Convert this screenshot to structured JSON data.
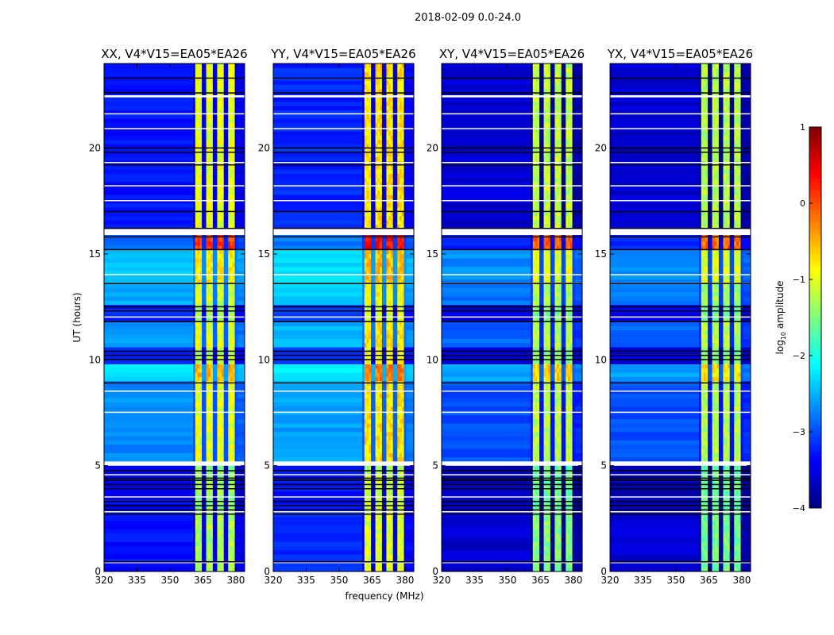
{
  "chart_data": {
    "type": "heatmap",
    "title": "2018-02-09 0.0-24.0",
    "xlabel": "frequency (MHz)",
    "ylabel": "UT (hours)",
    "xlim": [
      320,
      384
    ],
    "ylim": [
      0,
      24
    ],
    "xticks": [
      320,
      335,
      350,
      365,
      380
    ],
    "yticks": [
      0,
      5,
      10,
      15,
      20
    ],
    "colorbar": {
      "label_main": "log",
      "label_sub": "10",
      "label_rest": " amplitude",
      "range": [
        -4,
        1
      ],
      "ticks": [
        1,
        0,
        -1,
        -2,
        -3,
        -4
      ],
      "colormap": "jet"
    },
    "panels": [
      {
        "title": "XX, V4*V15=EA05*EA26",
        "bg_offset": 0.0,
        "band_offset": 0.0
      },
      {
        "title": "YY, V4*V15=EA05*EA26",
        "bg_offset": 0.1,
        "band_offset": 0.25
      },
      {
        "title": "XY, V4*V15=EA05*EA26",
        "bg_offset": -0.3,
        "band_offset": -0.2
      },
      {
        "title": "YX, V4*V15=EA05*EA26",
        "bg_offset": -0.3,
        "band_offset": -0.25
      }
    ],
    "band_mhz": [
      360.5,
      380
    ],
    "channel_edges_mhz": [
      360.5,
      365,
      370,
      375,
      380
    ],
    "segments": [
      {
        "t": [
          0,
          2.7
        ],
        "bg": -3.3,
        "band": -1.3
      },
      {
        "t": [
          2.7,
          4.8
        ],
        "bg": -3.4,
        "band": -1.4
      },
      {
        "t": [
          4.8,
          5.0
        ],
        "bg": -3.5,
        "band": -1.5
      },
      {
        "t": [
          5.2,
          9.0
        ],
        "bg": -2.7,
        "band": -1.0
      },
      {
        "t": [
          9.0,
          9.7
        ],
        "bg": -2.3,
        "band": -0.5
      },
      {
        "t": [
          9.7,
          10.5
        ],
        "bg": -3.2,
        "band": -1.2
      },
      {
        "t": [
          10.5,
          11.8
        ],
        "bg": -2.6,
        "band": -1.0
      },
      {
        "t": [
          11.8,
          12.6
        ],
        "bg": -3.2,
        "band": -1.3
      },
      {
        "t": [
          12.6,
          13.6
        ],
        "bg": -2.5,
        "band": -1.1
      },
      {
        "t": [
          13.6,
          15.2
        ],
        "bg": -2.4,
        "band": -0.8
      },
      {
        "t": [
          15.2,
          15.9
        ],
        "bg": -2.9,
        "band": 0.1
      },
      {
        "t": [
          16.2,
          24
        ],
        "bg": -3.3,
        "band": -1.0
      }
    ],
    "flagged_hours": [
      [
        5.0,
        5.2
      ],
      [
        15.9,
        16.2
      ],
      [
        4.55,
        4.6
      ],
      [
        22.4,
        22.5
      ],
      [
        21.6,
        21.65
      ],
      [
        20.9,
        20.95
      ],
      [
        19.3,
        19.35
      ],
      [
        18.2,
        18.25
      ],
      [
        17.5,
        17.55
      ],
      [
        14.0,
        14.05
      ],
      [
        13.6,
        13.65
      ],
      [
        12.0,
        12.05
      ],
      [
        7.5,
        7.55
      ],
      [
        8.5,
        8.55
      ],
      [
        3.5,
        3.55
      ],
      [
        2.8,
        2.85
      ],
      [
        0.4,
        0.45
      ]
    ],
    "black_line_hours": [
      0.45,
      2.7,
      2.9,
      3.1,
      3.3,
      3.9,
      4.1,
      4.3,
      4.4,
      4.75,
      8.9,
      10.0,
      10.2,
      10.4,
      11.8,
      12.3,
      12.5,
      13.6,
      15.2,
      15.8,
      16.2,
      17.0,
      19.2,
      19.8,
      20.0,
      22.6,
      23.3
    ]
  }
}
